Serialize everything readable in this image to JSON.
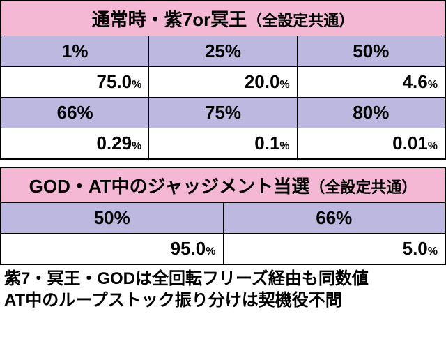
{
  "table1": {
    "title": "通常時・紫7or冥王",
    "title_sub": "（全設定共通）",
    "header_bg": "#f5b8d4",
    "purple_bg": "#bdb8e0",
    "white_bg": "#ffffff",
    "border_color": "#000000",
    "title_fontsize": 26,
    "cell_fontsize": 26,
    "rows": [
      {
        "type": "header",
        "cells": [
          "1%",
          "25%",
          "50%"
        ]
      },
      {
        "type": "data",
        "cells": [
          "75.0",
          "20.0",
          "4.6"
        ],
        "unit": "%"
      },
      {
        "type": "header",
        "cells": [
          "66%",
          "75%",
          "80%"
        ]
      },
      {
        "type": "data",
        "cells": [
          "0.29",
          "0.1",
          "0.01"
        ],
        "unit": "%"
      }
    ]
  },
  "table2": {
    "title": "GOD・AT中のジャッジメント当選",
    "title_sub": "（全設定共通）",
    "header_bg": "#f5b8d4",
    "purple_bg": "#bdb8e0",
    "white_bg": "#ffffff",
    "border_color": "#000000",
    "title_fontsize": 26,
    "cell_fontsize": 26,
    "rows": [
      {
        "type": "header",
        "cells": [
          "50%",
          "66%"
        ]
      },
      {
        "type": "data",
        "cells": [
          "95.0",
          "5.0"
        ],
        "unit": "%"
      }
    ]
  },
  "footer": {
    "line1": "紫7・冥王・GODは全回転フリーズ経由も同数値",
    "line2": "AT中のループストック振り分けは契機役不問",
    "fontsize": 24
  }
}
